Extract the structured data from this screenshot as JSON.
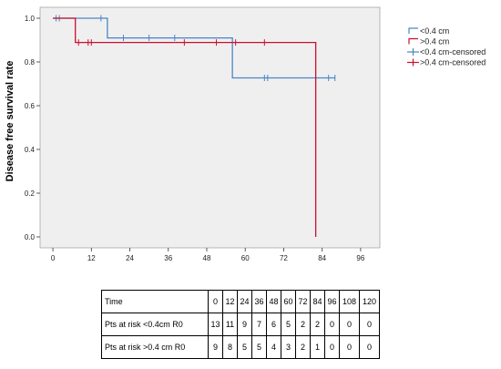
{
  "chart_data": {
    "type": "line",
    "subtype": "kaplan-meier step curve",
    "ylabel": "Disease free survival rate",
    "xlabel": "",
    "xlim": [
      -4,
      102
    ],
    "ylim": [
      -0.05,
      1.05
    ],
    "x_ticks": [
      0,
      12,
      24,
      36,
      48,
      60,
      72,
      84,
      96
    ],
    "y_ticks": [
      0.0,
      0.2,
      0.4,
      0.6,
      0.8,
      1.0
    ],
    "y_tick_labels": [
      "0.0",
      "0.2",
      "0.4",
      "0.6",
      "0.8",
      "1.0"
    ],
    "grid": false,
    "legend_position": "right",
    "background_color": "#f0eff0",
    "series": [
      {
        "name": "<0.4 cm",
        "color": "#4a86c5",
        "steps": [
          [
            0,
            1.0
          ],
          [
            17,
            0.91
          ],
          [
            56,
            0.727
          ],
          [
            88,
            0.727
          ]
        ],
        "censored": [
          [
            1,
            1.0
          ],
          [
            2,
            1.0
          ],
          [
            15,
            1.0
          ],
          [
            22,
            0.91
          ],
          [
            30,
            0.91
          ],
          [
            38,
            0.91
          ],
          [
            66,
            0.727
          ],
          [
            67,
            0.727
          ],
          [
            86,
            0.727
          ],
          [
            88,
            0.727
          ]
        ]
      },
      {
        "name": ">0.4 cm",
        "color": "#c8102e",
        "steps": [
          [
            0,
            1.0
          ],
          [
            7,
            0.889
          ],
          [
            82,
            0.889
          ],
          [
            82,
            0.0
          ]
        ],
        "censored": [
          [
            8,
            0.889
          ],
          [
            11,
            0.889
          ],
          [
            12,
            0.889
          ],
          [
            41,
            0.889
          ],
          [
            51,
            0.889
          ],
          [
            57,
            0.889
          ],
          [
            66,
            0.889
          ]
        ]
      }
    ],
    "legend": [
      {
        "label": "<0.4 cm",
        "color": "#4a86c5",
        "kind": "line"
      },
      {
        "label": ">0.4 cm",
        "color": "#c8102e",
        "kind": "line"
      },
      {
        "label": "<0.4 cm-censored",
        "color": "#4a86c5",
        "kind": "censor"
      },
      {
        "label": ">0.4 cm-censored",
        "color": "#c8102e",
        "kind": "censor"
      }
    ]
  },
  "risk_table": {
    "header": {
      "label": "Time",
      "values": [
        "0",
        "12",
        "24",
        "36",
        "48",
        "60",
        "72",
        "84",
        "96",
        "108",
        "120"
      ]
    },
    "rows": [
      {
        "label": "Pts at risk <0.4cm R0",
        "values": [
          "13",
          "11",
          "9",
          "7",
          "6",
          "5",
          "2",
          "2",
          "0",
          "0",
          "0"
        ]
      },
      {
        "label": "Pts at risk >0.4 cm R0",
        "values": [
          "9",
          "8",
          "5",
          "5",
          "4",
          "3",
          "2",
          "1",
          "0",
          "0",
          "0"
        ]
      }
    ]
  }
}
